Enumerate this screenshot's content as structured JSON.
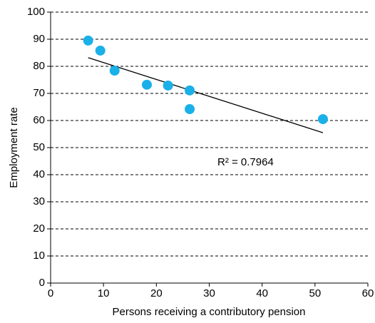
{
  "chart_data": {
    "type": "scatter",
    "x_label": "Persons receiving a contributory pension",
    "y_label": "Employment rate",
    "series": [
      {
        "name": "Employment rate",
        "color": "#1ab0e8",
        "x": [
          7.1,
          9.4,
          12.1,
          18.2,
          22.2,
          26.3,
          26.3,
          51.5
        ],
        "values": [
          89.5,
          85.8,
          78.4,
          73.2,
          72.9,
          71.1,
          64.2,
          60.5
        ]
      }
    ],
    "trendline": {
      "color": "#000000",
      "x": [
        7.1,
        51.5
      ],
      "values": [
        83.2,
        55.5
      ]
    },
    "annotation": "R² = 0.7964",
    "xlim": [
      0,
      60
    ],
    "xticks": [
      0,
      10,
      20,
      30,
      40,
      50,
      60
    ],
    "ylim": [
      0,
      100
    ],
    "yticks": [
      0,
      10,
      20,
      30,
      40,
      50,
      60,
      70,
      80,
      90,
      100
    ],
    "grid": true
  }
}
